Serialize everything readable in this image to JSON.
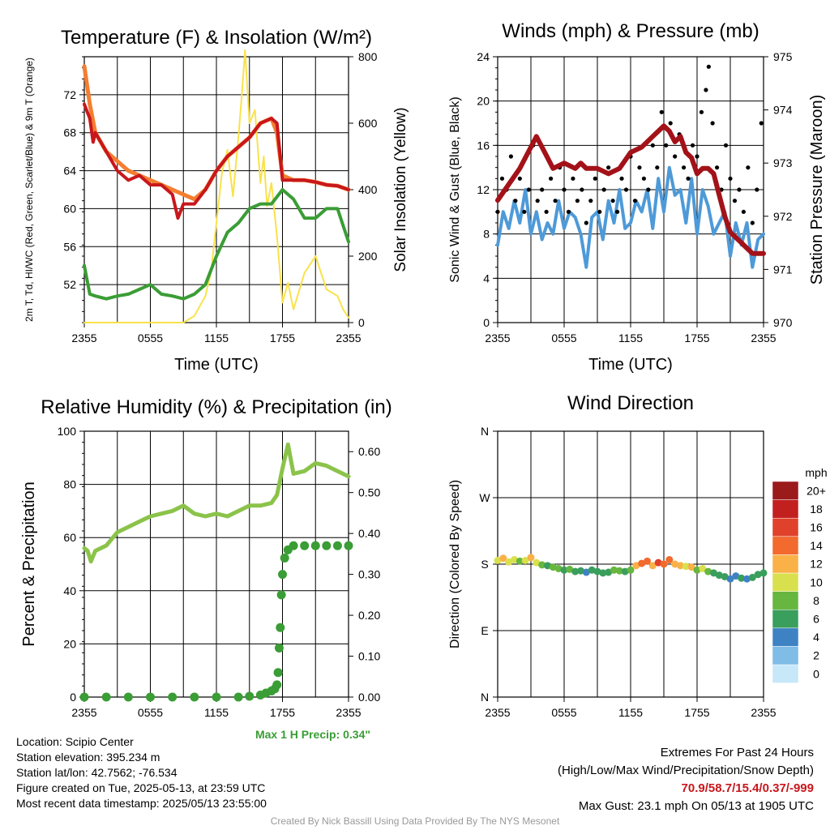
{
  "colors": {
    "red": "#c8171c",
    "orange": "#f47e30",
    "green": "#3a9d35",
    "yellow": "#f9e24a",
    "blue": "#4e9ad8",
    "black": "#000000",
    "maroon": "#a31218",
    "rh_green": "#8bc34a",
    "precip_green": "#3a9d35",
    "extreme_red": "#c8171c"
  },
  "chart_data": [
    {
      "type": "line",
      "title": "Temperature (F) & Insolation (W/m²)",
      "xlabel": "Time (UTC)",
      "ylabel": "2m T, Td, HI/WC (Red, Green, Scarlet/Blue) & 9m T (Orange)",
      "y2label": "Solar Insolation (Yellow)",
      "x_ticks": [
        "2355",
        "0555",
        "1155",
        "1755",
        "2355"
      ],
      "x_range_hours": [
        0,
        24
      ],
      "ylim": [
        48,
        76
      ],
      "y_ticks": [
        52,
        56,
        60,
        64,
        68,
        72
      ],
      "y2lim": [
        0,
        800
      ],
      "y2_ticks": [
        0,
        200,
        400,
        600,
        800
      ],
      "grid": true,
      "series": [
        {
          "key": "temp_9m",
          "color": "orange",
          "axis": "left",
          "x": [
            0,
            0.5,
            1,
            2,
            3,
            4,
            5,
            6,
            7,
            8,
            9,
            10,
            11,
            12,
            13,
            14,
            15,
            16,
            17,
            17.5,
            18,
            19,
            20,
            21,
            22,
            23,
            24
          ],
          "y": [
            75,
            71,
            68,
            66,
            65,
            64,
            63.5,
            63,
            62.5,
            62,
            61.5,
            61,
            62,
            64,
            65.5,
            66.5,
            67.5,
            69,
            69.5,
            68,
            63.5,
            63,
            63,
            62.8,
            62.5,
            62.4,
            62
          ]
        },
        {
          "key": "temp_2m",
          "color": "red",
          "axis": "left",
          "x": [
            0,
            0.5,
            0.8,
            1,
            2,
            3,
            4,
            5,
            6,
            7,
            8,
            8.5,
            9,
            10,
            11,
            12,
            13,
            14,
            15,
            16,
            17,
            17.5,
            18,
            19,
            20,
            21,
            22,
            23,
            24
          ],
          "y": [
            71,
            69.5,
            67,
            68,
            66,
            64,
            63,
            63.5,
            62.5,
            62.5,
            61.5,
            59,
            60.5,
            60.5,
            62,
            64,
            65.5,
            66.5,
            67.5,
            69,
            69.5,
            69,
            63,
            63,
            63,
            62.8,
            62.5,
            62.4,
            62
          ]
        },
        {
          "key": "dewpoint",
          "color": "green",
          "axis": "left",
          "x": [
            0,
            0.5,
            1,
            2,
            3,
            4,
            5,
            6,
            7,
            8,
            9,
            10,
            11,
            12,
            13,
            14,
            15,
            16,
            17,
            18,
            19,
            20,
            21,
            22,
            23,
            24
          ],
          "y": [
            54,
            51,
            50.8,
            50.5,
            50.8,
            51,
            51.5,
            52,
            51,
            50.8,
            50.5,
            51,
            52,
            55,
            57.5,
            58.5,
            60,
            60.5,
            60.5,
            62,
            61,
            59,
            59,
            60,
            60,
            56.5
          ]
        },
        {
          "key": "insolation",
          "color": "yellow",
          "axis": "right",
          "x": [
            0,
            1,
            2,
            3,
            4,
            5,
            6,
            7,
            8,
            9,
            10,
            11,
            11.5,
            12,
            12.5,
            13,
            13.5,
            14,
            14.3,
            14.6,
            15,
            15.5,
            16,
            16.3,
            16.6,
            17,
            17.5,
            18,
            18.5,
            19,
            20,
            21,
            22,
            23,
            23.5,
            24
          ],
          "y": [
            0,
            0,
            0,
            0,
            0,
            0,
            0,
            0,
            0,
            0,
            20,
            80,
            150,
            300,
            450,
            520,
            380,
            560,
            680,
            820,
            600,
            640,
            420,
            500,
            350,
            420,
            260,
            60,
            120,
            40,
            150,
            200,
            100,
            80,
            40,
            15
          ]
        }
      ]
    },
    {
      "type": "line",
      "title": "Winds (mph) & Pressure (mb)",
      "xlabel": "Time (UTC)",
      "ylabel": "Sonic Wind & Gust (Blue, Black)",
      "y2label": "Station Pressure (Maroon)",
      "x_ticks": [
        "2355",
        "0555",
        "1155",
        "1755",
        "2355"
      ],
      "x_range_hours": [
        0,
        24
      ],
      "ylim": [
        0,
        24
      ],
      "y_ticks": [
        0,
        4,
        8,
        12,
        16,
        20,
        24
      ],
      "y2lim": [
        970,
        975
      ],
      "y2_ticks": [
        970,
        971,
        972,
        973,
        974,
        975
      ],
      "grid": true,
      "series": [
        {
          "key": "wind",
          "color": "blue",
          "axis": "left",
          "x": [
            0,
            0.5,
            1,
            1.5,
            2,
            2.5,
            3,
            3.5,
            4,
            4.5,
            5,
            5.5,
            6,
            6.5,
            7,
            7.5,
            8,
            8.5,
            9,
            9.5,
            10,
            10.5,
            11,
            11.5,
            12,
            12.5,
            13,
            13.5,
            14,
            14.5,
            15,
            15.5,
            16,
            16.5,
            17,
            17.5,
            18,
            18.5,
            19,
            19.5,
            20,
            20.5,
            21,
            21.5,
            22,
            22.5,
            23,
            23.5,
            24
          ],
          "y": [
            7,
            10,
            8.5,
            11,
            9,
            12,
            8,
            10,
            7.5,
            9,
            8,
            11,
            8.5,
            10,
            9.5,
            8,
            5,
            9.5,
            10,
            7.5,
            11,
            9,
            12,
            8.5,
            9,
            11,
            10,
            12,
            8.5,
            13,
            10,
            14,
            11.5,
            12,
            9,
            13,
            8,
            12,
            10.5,
            8,
            9,
            10,
            6,
            9,
            7,
            9,
            5,
            7.5,
            8
          ]
        },
        {
          "key": "gust",
          "color": "black",
          "axis": "left",
          "x": [
            0,
            0.4,
            0.8,
            1.2,
            1.6,
            2,
            2.4,
            2.8,
            3.2,
            3.6,
            4,
            4.4,
            4.8,
            5.2,
            5.6,
            6,
            6.4,
            6.8,
            7.2,
            7.6,
            8,
            8.4,
            8.8,
            9.2,
            9.6,
            10,
            10.4,
            10.8,
            11.2,
            11.6,
            12,
            12.4,
            12.8,
            13.2,
            13.6,
            14,
            14.4,
            14.8,
            15.2,
            15.6,
            16,
            16.4,
            16.8,
            17.2,
            17.6,
            18,
            18.4,
            18.8,
            19.05,
            19.4,
            19.8,
            20.2,
            20.6,
            21,
            21.4,
            21.8,
            22.2,
            22.6,
            23,
            23.4,
            23.8
          ],
          "y": [
            10,
            13,
            12,
            15,
            11,
            13,
            10,
            12,
            16,
            11,
            12,
            10,
            13,
            11,
            14,
            12,
            10,
            13,
            11,
            12,
            9,
            11,
            13,
            10,
            12,
            14,
            11,
            10,
            13,
            12,
            15,
            11,
            14,
            13,
            12,
            16,
            14,
            19,
            16,
            18,
            15,
            17,
            14,
            13,
            16,
            15,
            19,
            21,
            23.1,
            18,
            14,
            12,
            16,
            13,
            11,
            12,
            10,
            14,
            9,
            12,
            18
          ]
        },
        {
          "key": "pressure",
          "color": "maroon",
          "axis": "right",
          "x": [
            0,
            1,
            2,
            3,
            3.5,
            4,
            5,
            6,
            7,
            7.5,
            8,
            9,
            10,
            11,
            12,
            13,
            14,
            15,
            15.5,
            16,
            16.5,
            17,
            17.5,
            18,
            18.5,
            19,
            19.5,
            20,
            20.5,
            21,
            21.5,
            22,
            22.5,
            23,
            23.5,
            24
          ],
          "y": [
            972.3,
            972.6,
            972.9,
            973.3,
            973.5,
            973.3,
            972.9,
            973.0,
            972.9,
            973.0,
            972.9,
            972.9,
            972.8,
            972.9,
            973.2,
            973.3,
            973.5,
            973.7,
            973.6,
            973.4,
            973.5,
            973.2,
            973.1,
            972.8,
            972.9,
            972.9,
            972.8,
            972.4,
            972.0,
            971.7,
            971.6,
            971.5,
            971.4,
            971.3,
            971.3,
            971.3
          ]
        }
      ]
    },
    {
      "type": "line",
      "title": "Relative Humidity (%) & Precipitation (in)",
      "xlabel": "",
      "ylabel": "Percent & Precipitation",
      "x_ticks": [
        "2355",
        "0555",
        "1155",
        "1755",
        "2355"
      ],
      "x_range_hours": [
        0,
        24
      ],
      "ylim": [
        0,
        100
      ],
      "y_ticks": [
        0,
        20,
        40,
        60,
        80,
        100
      ],
      "y2lim": [
        0,
        0.65
      ],
      "y2_ticks": [
        0.0,
        0.1,
        0.2,
        0.3,
        0.4,
        0.5,
        0.6
      ],
      "grid": true,
      "annotation": "Max 1 H Precip: 0.34\"",
      "series": [
        {
          "key": "rh",
          "color": "rh_green",
          "axis": "left",
          "x": [
            0,
            0.3,
            0.6,
            1,
            2,
            3,
            4,
            5,
            6,
            7,
            8,
            9,
            10,
            11,
            12,
            13,
            14,
            15,
            16,
            17,
            17.5,
            18,
            18.5,
            19,
            20,
            21,
            22,
            23,
            24
          ],
          "y": [
            56,
            55,
            51,
            55,
            57,
            62,
            64,
            66,
            68,
            69,
            70,
            72,
            69,
            68,
            69,
            68,
            70,
            72,
            72,
            73,
            76,
            86,
            95,
            84,
            85,
            88,
            87,
            85,
            83
          ]
        },
        {
          "key": "precip",
          "color": "precip_green",
          "axis": "right",
          "x": [
            0,
            2,
            4,
            6,
            8,
            10,
            12,
            14,
            15,
            16,
            16.5,
            17,
            17.3,
            17.5,
            17.6,
            17.7,
            17.8,
            17.9,
            18,
            18.2,
            18.5,
            19,
            20,
            21,
            22,
            23,
            24
          ],
          "y": [
            0,
            0,
            0,
            0,
            0,
            0,
            0,
            0,
            0.002,
            0.005,
            0.01,
            0.015,
            0.02,
            0.03,
            0.06,
            0.12,
            0.17,
            0.25,
            0.3,
            0.34,
            0.36,
            0.37,
            0.37,
            0.37,
            0.37,
            0.37,
            0.37
          ]
        }
      ]
    },
    {
      "type": "scatter",
      "title": "Wind Direction",
      "ylabel": "Direction (Colored By Speed)",
      "x_ticks": [
        "2355",
        "0555",
        "1155",
        "1755",
        "2355"
      ],
      "x_range_hours": [
        0,
        24
      ],
      "y_ticks": [
        "N",
        "E",
        "S",
        "W",
        "N"
      ],
      "ylim": [
        0,
        360
      ],
      "grid": true,
      "colorbar": {
        "unit": "mph",
        "labels": [
          "0",
          "2",
          "4",
          "6",
          "8",
          "10",
          "12",
          "14",
          "16",
          "18",
          "20+"
        ],
        "colors": [
          "#c6e8f9",
          "#7fbce6",
          "#3f82c4",
          "#3a9e5c",
          "#66b63f",
          "#d9e04e",
          "#f9b148",
          "#f26a2e",
          "#e0412a",
          "#c2201f",
          "#9b1a1a"
        ]
      },
      "x": [
        0,
        0.5,
        1,
        1.5,
        2,
        2.5,
        3,
        3.5,
        4,
        4.5,
        5,
        5.5,
        6,
        6.5,
        7,
        7.5,
        8,
        8.5,
        9,
        9.5,
        10,
        10.5,
        11,
        11.5,
        12,
        12.5,
        13,
        13.5,
        14,
        14.5,
        15,
        15.5,
        16,
        16.5,
        17,
        17.5,
        18,
        18.5,
        19,
        19.5,
        20,
        20.5,
        21,
        21.5,
        22,
        22.5,
        23,
        23.5,
        24
      ],
      "y": [
        185,
        188,
        183,
        186,
        184,
        185,
        189,
        182,
        179,
        178,
        176,
        174,
        172,
        173,
        170,
        171,
        169,
        172,
        170,
        168,
        169,
        172,
        171,
        170,
        172,
        178,
        181,
        184,
        178,
        182,
        180,
        186,
        180,
        178,
        177,
        176,
        172,
        174,
        170,
        168,
        165,
        163,
        160,
        164,
        161,
        160,
        162,
        166,
        168
      ],
      "speed": [
        10,
        12,
        11,
        10,
        9,
        11,
        13,
        10,
        8,
        7,
        8,
        9,
        7,
        8,
        6,
        7,
        5,
        6,
        7,
        6,
        7,
        8,
        8,
        7,
        9,
        12,
        14,
        15,
        13,
        17,
        14,
        15,
        12,
        13,
        11,
        13,
        9,
        10,
        8,
        7,
        6,
        7,
        5,
        5,
        6,
        5,
        6,
        7,
        7
      ]
    }
  ],
  "footer": {
    "location": "Location: Scipio Center",
    "elevation": "Station elevation: 395.234 m",
    "latlon": "Station lat/lon: 42.7562; -76.534",
    "created": "Figure created on Tue, 2025-05-13, at 23:59 UTC",
    "recent": "Most recent data timestamp: 2025/05/13 23:55:00",
    "extremes_title": "Extremes For Past 24 Hours",
    "extremes_legend": "(High/Low/Max Wind/Precipitation/Snow Depth)",
    "extremes_values": "70.9/58.7/15.4/0.37/-999",
    "max_gust": "Max Gust: 23.1 mph On 05/13 at 1905 UTC",
    "credit": "Created By Nick Bassill Using Data Provided By The NYS Mesonet"
  }
}
